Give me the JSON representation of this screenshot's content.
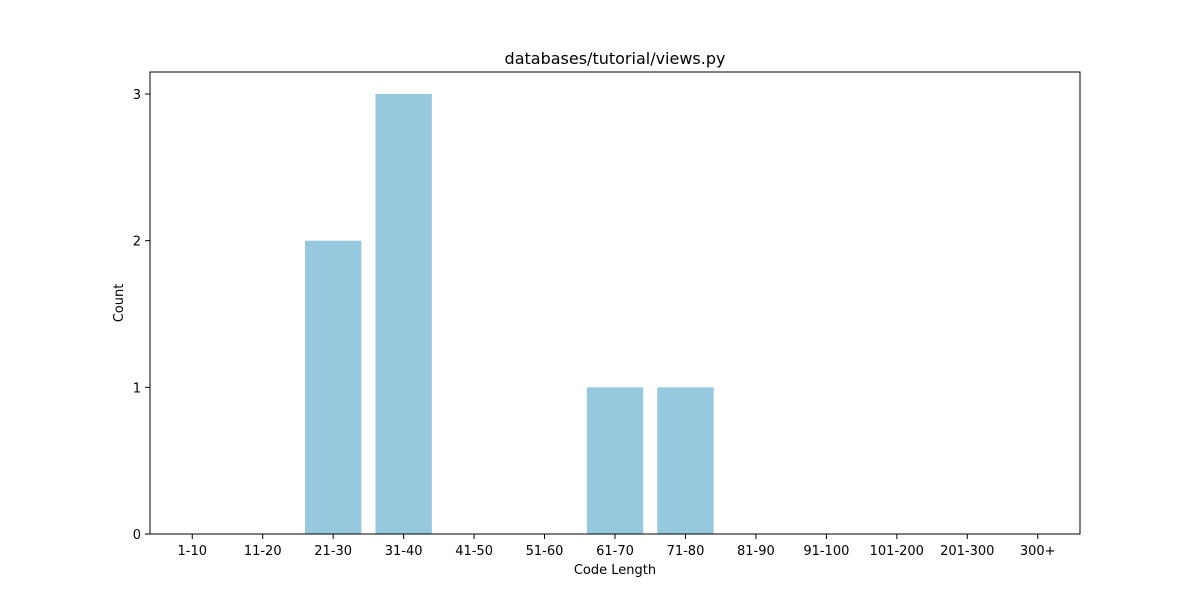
{
  "chart_data": {
    "type": "bar",
    "title": "databases/tutorial/views.py",
    "xlabel": "Code Length",
    "ylabel": "Count",
    "categories": [
      "1-10",
      "11-20",
      "21-30",
      "31-40",
      "41-50",
      "51-60",
      "61-70",
      "71-80",
      "81-90",
      "91-100",
      "101-200",
      "201-300",
      "300+"
    ],
    "values": [
      0,
      0,
      2,
      3,
      0,
      0,
      1,
      1,
      0,
      0,
      0,
      0,
      0
    ],
    "ylim": [
      0,
      3.15
    ],
    "yticks": [
      0,
      1,
      2,
      3
    ],
    "bar_color": "#96c9de",
    "grid": false,
    "legend": "none"
  }
}
